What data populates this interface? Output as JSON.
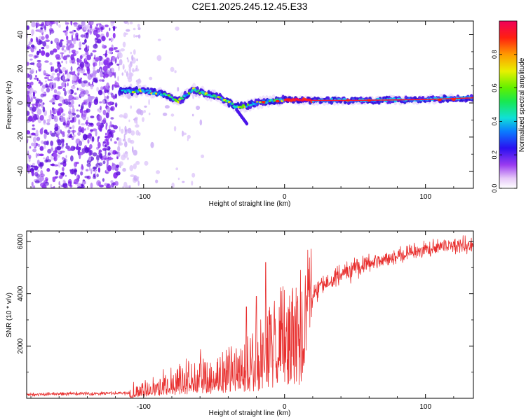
{
  "title": "C2E1.2025.245.12.45.E33",
  "colors": {
    "snr_line": "#e8302f",
    "noise": "#7a1fe6",
    "axis": "#000000"
  },
  "chart_data": [
    {
      "type": "heatmap",
      "title": "C2E1.2025.245.12.45.E33",
      "xlabel": "Height of straight line (km)",
      "ylabel": "Frequency (Hz)",
      "xlim": [
        -183,
        134
      ],
      "ylim": [
        -50,
        48
      ],
      "xticks": [
        -100,
        0,
        100
      ],
      "xtick_labels": [
        "-100",
        "0",
        "100"
      ],
      "yticks": [
        -40,
        -20,
        0,
        20,
        40
      ],
      "ytick_labels": [
        "-40",
        "-20",
        "0",
        "20",
        "40"
      ],
      "ridge": {
        "x": [
          -117,
          -100,
          -85,
          -75,
          -65,
          -55,
          -45,
          -35,
          -28,
          -20,
          -10,
          0,
          20,
          50,
          100,
          134
        ],
        "freq": [
          7,
          7,
          5,
          1,
          8,
          5,
          3,
          -2,
          -2,
          0,
          1,
          2,
          1.5,
          1.5,
          2,
          3
        ]
      },
      "colorbar": {
        "label": "Normalized spectral amplitude",
        "range": [
          0,
          1
        ],
        "ticks": [
          0.0,
          0.2,
          0.4,
          0.6,
          0.8
        ],
        "tick_labels": [
          "0.0",
          "0.2",
          "0.4",
          "0.6",
          "0.8"
        ]
      }
    },
    {
      "type": "line",
      "xlabel": "Height of straight line (km)",
      "ylabel": "SNR (10 * v/v)",
      "xlim": [
        -183,
        134
      ],
      "ylim": [
        0,
        6400
      ],
      "xticks": [
        -100,
        0,
        100
      ],
      "xtick_labels": [
        "-100",
        "0",
        "100"
      ],
      "yticks": [
        2000,
        4000,
        6000
      ],
      "ytick_labels": [
        "2000",
        "4000",
        "6000"
      ],
      "trend": {
        "x": [
          -183,
          -140,
          -110,
          -100,
          -80,
          -60,
          -40,
          -30,
          -20,
          -12,
          -5,
          0,
          10,
          20,
          30,
          50,
          70,
          90,
          110,
          134
        ],
        "y": [
          150,
          180,
          200,
          350,
          800,
          1100,
          1200,
          1400,
          1800,
          2600,
          2900,
          3100,
          3400,
          4000,
          4500,
          5000,
          5300,
          5600,
          5800,
          5900
        ]
      },
      "spikes": [
        {
          "x": -13.5,
          "y": 5200
        },
        {
          "x": -20,
          "y": 3900
        },
        {
          "x": -27,
          "y": 3500
        }
      ]
    }
  ]
}
